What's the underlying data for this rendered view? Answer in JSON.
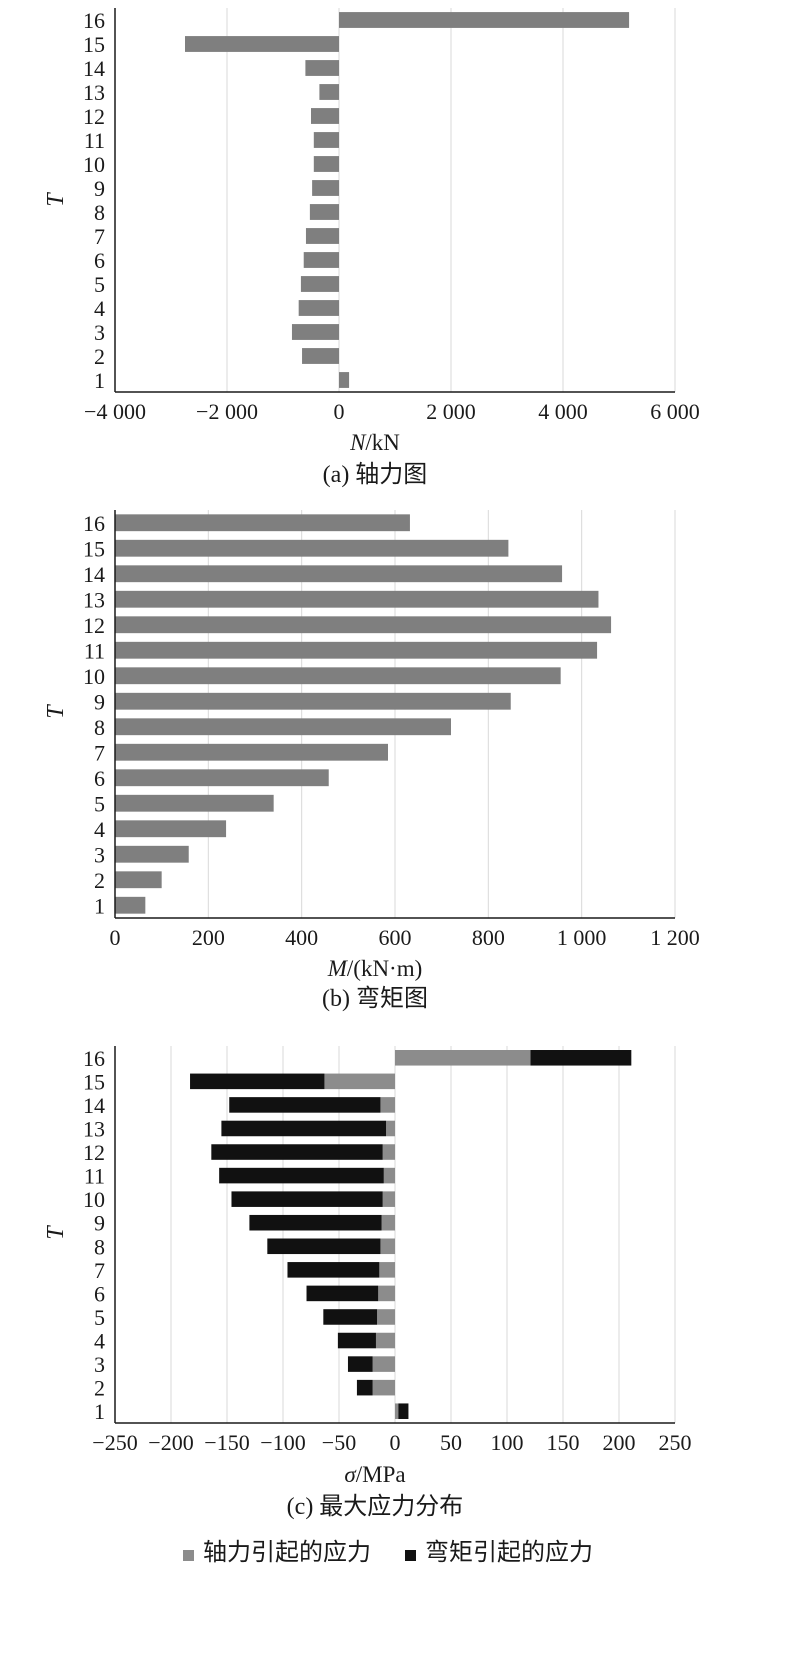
{
  "chart_data": [
    {
      "type": "bar",
      "orientation": "horizontal",
      "caption": "(a) 轴力图",
      "xlabel_symbol": "N",
      "xlabel_unit": "/kN",
      "ylabel": "T",
      "xlim": [
        -4000,
        6000
      ],
      "xticks": [
        -4000,
        -2000,
        0,
        2000,
        4000,
        6000
      ],
      "xtick_labels": [
        "−4 000",
        "−2 000",
        "0",
        "2 000",
        "4 000",
        "6 000"
      ],
      "categories": [
        "1",
        "2",
        "3",
        "4",
        "5",
        "6",
        "7",
        "8",
        "9",
        "10",
        "11",
        "12",
        "13",
        "14",
        "15",
        "16"
      ],
      "values": [
        180,
        -660,
        -840,
        -720,
        -680,
        -630,
        -590,
        -520,
        -480,
        -450,
        -450,
        -500,
        -350,
        -600,
        -2750,
        5180
      ],
      "grid": "vertical",
      "bar_color": "#7f7f7f"
    },
    {
      "type": "bar",
      "orientation": "horizontal",
      "caption": "(b) 弯矩图",
      "xlabel_symbol": "M",
      "xlabel_unit": "/(kN·m)",
      "ylabel": "T",
      "xlim": [
        0,
        1200
      ],
      "xticks": [
        0,
        200,
        400,
        600,
        800,
        1000,
        1200
      ],
      "xtick_labels": [
        "0",
        "200",
        "400",
        "600",
        "800",
        "1 000",
        "1 200"
      ],
      "categories": [
        "1",
        "2",
        "3",
        "4",
        "5",
        "6",
        "7",
        "8",
        "9",
        "10",
        "11",
        "12",
        "13",
        "14",
        "15",
        "16"
      ],
      "values": [
        65,
        100,
        158,
        238,
        340,
        458,
        585,
        720,
        848,
        955,
        1033,
        1063,
        1036,
        958,
        843,
        632
      ],
      "grid": "vertical",
      "bar_color": "#7f7f7f"
    },
    {
      "type": "bar",
      "orientation": "horizontal",
      "stacked": true,
      "caption": "(c) 最大应力分布",
      "xlabel_symbol": "σ",
      "xlabel_unit": "/MPa",
      "ylabel": "T",
      "xlim": [
        -250,
        250
      ],
      "xticks": [
        -250,
        -200,
        -150,
        -100,
        -50,
        0,
        50,
        100,
        150,
        200,
        250
      ],
      "xtick_labels": [
        "−250",
        "−200",
        "−150",
        "−100",
        "−50",
        "0",
        "50",
        "100",
        "150",
        "200",
        "250"
      ],
      "categories": [
        "1",
        "2",
        "3",
        "4",
        "5",
        "6",
        "7",
        "8",
        "9",
        "10",
        "11",
        "12",
        "13",
        "14",
        "15",
        "16"
      ],
      "series": [
        {
          "name": "轴力引起的应力",
          "color": "#8c8c8c",
          "values": [
            3,
            -20,
            -20,
            -17,
            -16,
            -15,
            -14,
            -13,
            -12,
            -11,
            -10,
            -11,
            -8,
            -13,
            -63,
            121
          ]
        },
        {
          "name": "弯矩引起的应力",
          "color": "#111111",
          "values": [
            9,
            -14,
            -22,
            -34,
            -48,
            -64,
            -82,
            -101,
            -118,
            -135,
            -147,
            -153,
            -147,
            -135,
            -120,
            90
          ]
        }
      ],
      "grid": "vertical",
      "legend_position": "bottom"
    }
  ]
}
